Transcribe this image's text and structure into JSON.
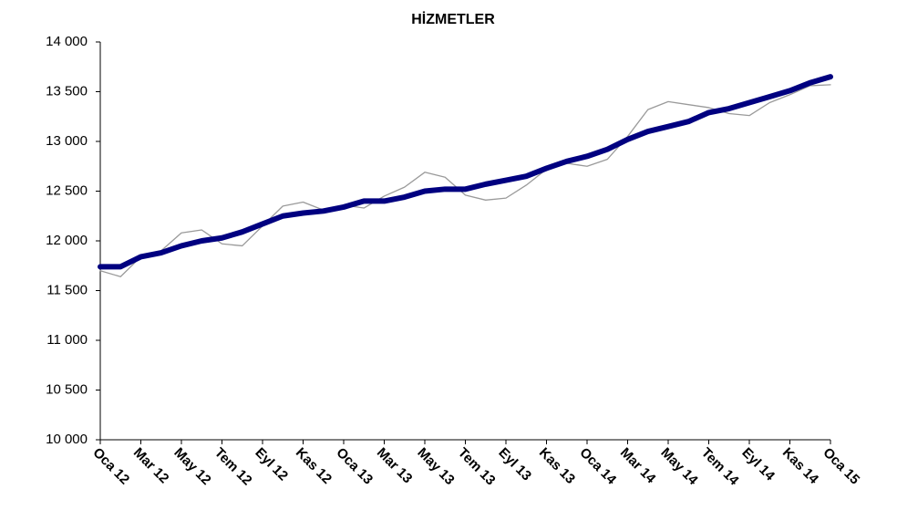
{
  "chart_data": {
    "type": "line",
    "title": "HİZMETLER",
    "categories": [
      "Oca 12",
      null,
      "Mar 12",
      null,
      "May 12",
      null,
      "Tem 12",
      null,
      "Eyl 12",
      null,
      "Kas 12",
      null,
      "Oca 13",
      null,
      "Mar 13",
      null,
      "May 13",
      null,
      "Tem 13",
      null,
      "Eyl 13",
      null,
      "Kas 13",
      null,
      "Oca 14",
      null,
      "Mar 14",
      null,
      "May 14",
      null,
      "Tem 14",
      null,
      "Eyl 14",
      null,
      "Kas 14",
      null,
      "Oca 15"
    ],
    "series": [
      {
        "color": "#9a9a9a",
        "width": 1.3,
        "values": [
          11700,
          11640,
          11840,
          11900,
          12080,
          12110,
          11970,
          11950,
          12150,
          12350,
          12390,
          12310,
          12360,
          12330,
          12450,
          12540,
          12690,
          12640,
          12460,
          12410,
          12430,
          12560,
          12720,
          12780,
          12750,
          12820,
          13050,
          13320,
          13400,
          13370,
          13340,
          13280,
          13260,
          13390,
          13470,
          13560,
          13570
        ]
      },
      {
        "color": "#000080",
        "width": 6,
        "values": [
          11740,
          11740,
          11840,
          11880,
          11950,
          12000,
          12030,
          12090,
          12170,
          12250,
          12280,
          12300,
          12340,
          12400,
          12400,
          12440,
          12500,
          12520,
          12520,
          12570,
          12610,
          12650,
          12730,
          12800,
          12850,
          12920,
          13020,
          13100,
          13150,
          13200,
          13290,
          13330,
          13390,
          13450,
          13510,
          13590,
          13650
        ]
      }
    ],
    "ylim": [
      10000,
      14000
    ],
    "yticks": [
      {
        "value": 10000,
        "label": "10 000"
      },
      {
        "value": 10500,
        "label": "10 500"
      },
      {
        "value": 11000,
        "label": "11 000"
      },
      {
        "value": 11500,
        "label": "11 500"
      },
      {
        "value": 12000,
        "label": "12 000"
      },
      {
        "value": 12500,
        "label": "12 500"
      },
      {
        "value": 13000,
        "label": "13 000"
      },
      {
        "value": 13500,
        "label": "13 500"
      },
      {
        "value": 14000,
        "label": "14 000"
      }
    ],
    "grid": false
  }
}
